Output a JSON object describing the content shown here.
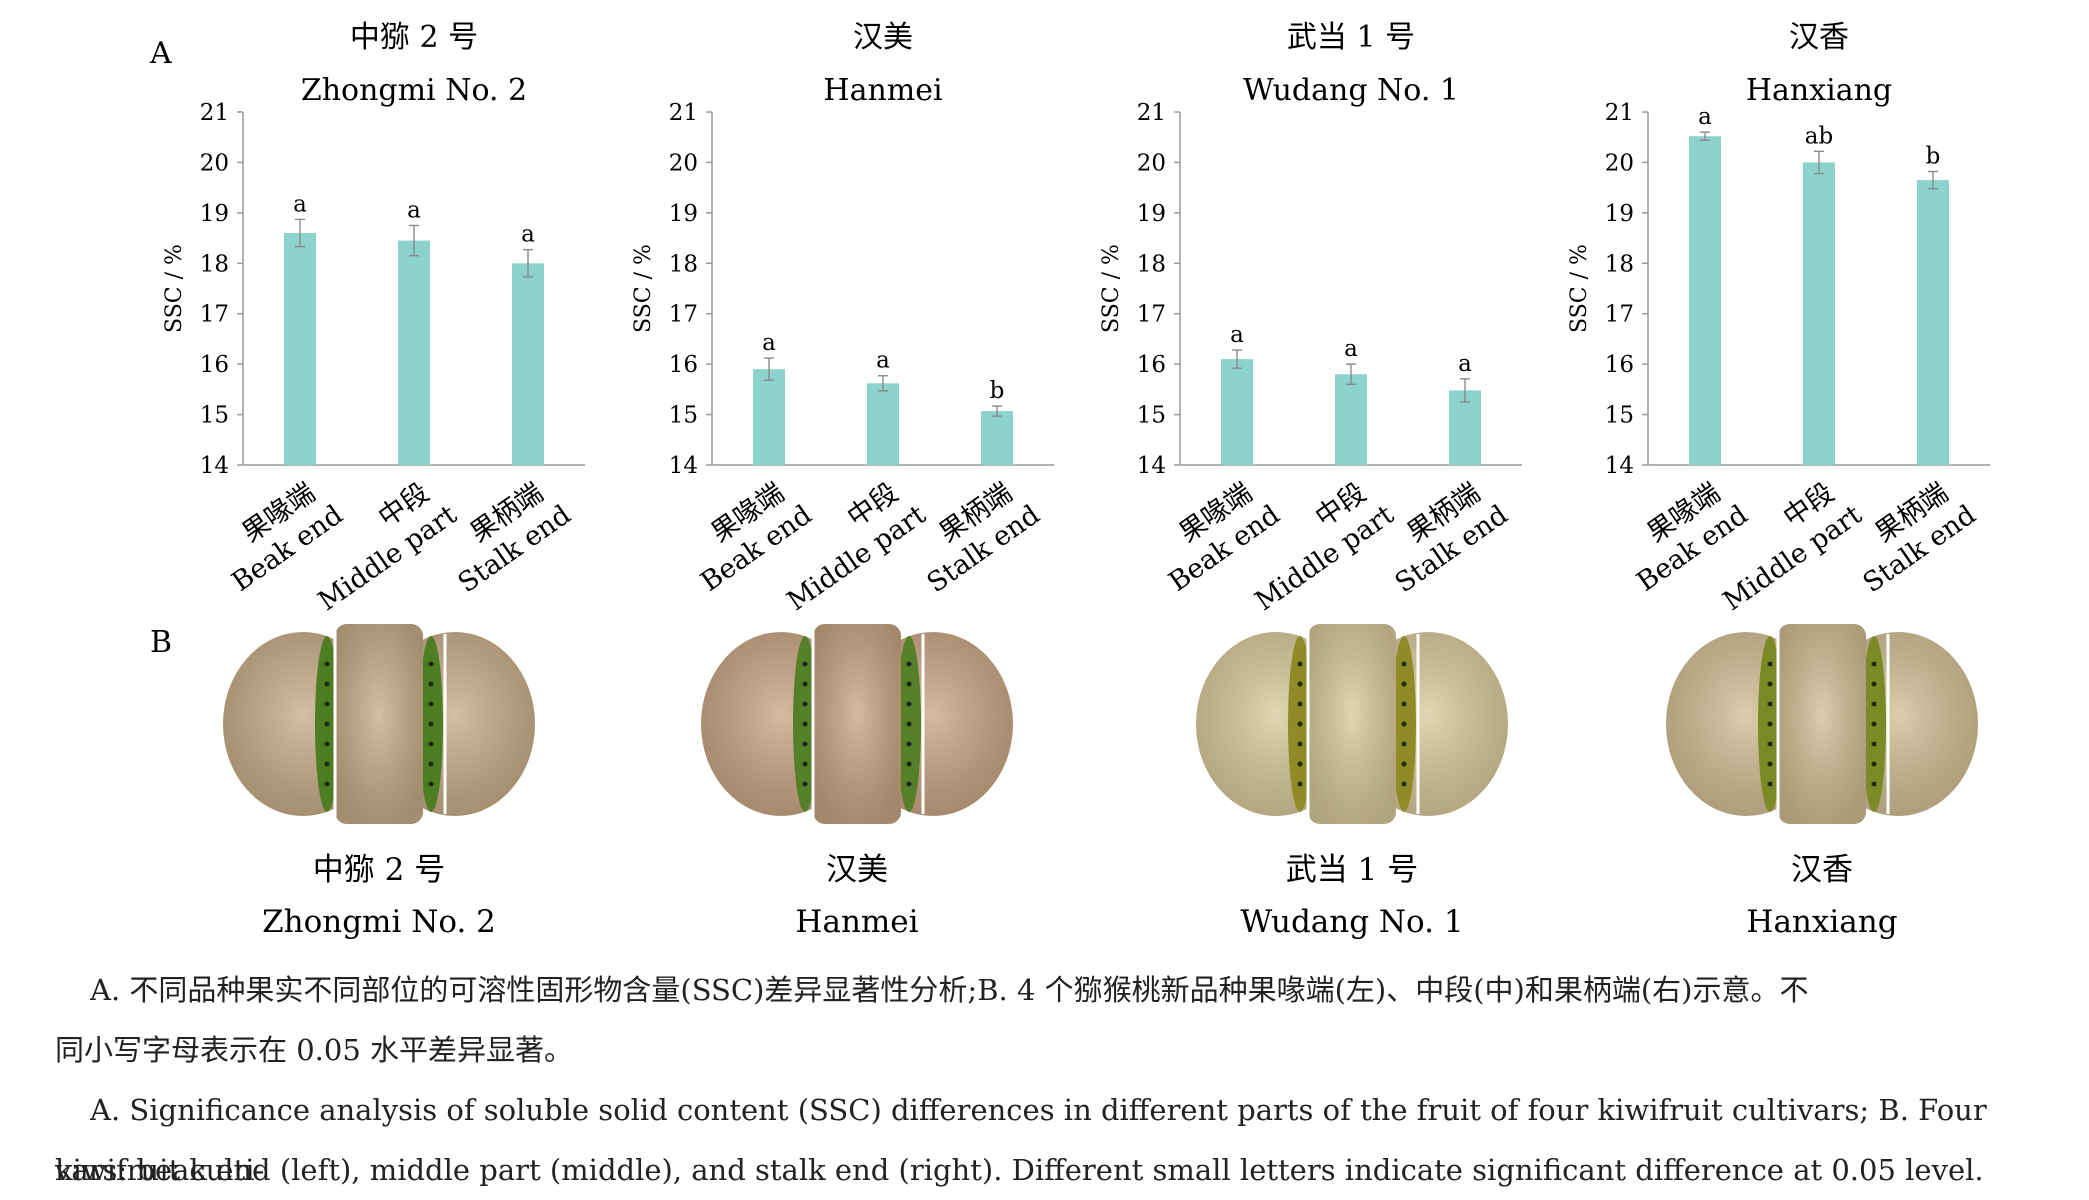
{
  "panel_labels": {
    "a": "A",
    "b": "B"
  },
  "chart_data": [
    {
      "type": "bar",
      "title_cn": "中猕 2 号",
      "title_en": "Zhongmi No. 2",
      "ylabel": "SSC / %",
      "ylim": [
        14,
        21
      ],
      "yticks": [
        "14",
        "15",
        "16",
        "17",
        "18",
        "19",
        "20",
        "21"
      ],
      "categories": [
        {
          "cn": "果喙端",
          "en": "Beak end"
        },
        {
          "cn": "中段",
          "en": "Middle part"
        },
        {
          "cn": "果柄端",
          "en": "Stalk end"
        }
      ],
      "values": [
        18.6,
        18.45,
        18.0
      ],
      "errors": [
        0.27,
        0.3,
        0.27
      ],
      "letters": [
        "a",
        "a",
        "a"
      ],
      "bar_color": "#8dd3cd"
    },
    {
      "type": "bar",
      "title_cn": "汉美",
      "title_en": "Hanmei",
      "ylabel": "SSC / %",
      "ylim": [
        14,
        21
      ],
      "yticks": [
        "14",
        "15",
        "16",
        "17",
        "18",
        "19",
        "20",
        "21"
      ],
      "categories": [
        {
          "cn": "果喙端",
          "en": "Beak end"
        },
        {
          "cn": "中段",
          "en": "Middle part"
        },
        {
          "cn": "果柄端",
          "en": "Stalk end"
        }
      ],
      "values": [
        15.9,
        15.62,
        15.07
      ],
      "errors": [
        0.22,
        0.15,
        0.1
      ],
      "letters": [
        "a",
        "a",
        "b"
      ],
      "bar_color": "#8dd3cd"
    },
    {
      "type": "bar",
      "title_cn": "武当 1 号",
      "title_en": "Wudang No. 1",
      "ylabel": "SSC / %",
      "ylim": [
        14,
        21
      ],
      "yticks": [
        "14",
        "15",
        "16",
        "17",
        "18",
        "19",
        "20",
        "21"
      ],
      "categories": [
        {
          "cn": "果喙端",
          "en": "Beak end"
        },
        {
          "cn": "中段",
          "en": "Middle part"
        },
        {
          "cn": "果柄端",
          "en": "Stalk end"
        }
      ],
      "values": [
        16.1,
        15.8,
        15.48
      ],
      "errors": [
        0.18,
        0.2,
        0.23
      ],
      "letters": [
        "a",
        "a",
        "a"
      ],
      "bar_color": "#8dd3cd"
    },
    {
      "type": "bar",
      "title_cn": "汉香",
      "title_en": "Hanxiang",
      "ylabel": "SSC / %",
      "ylim": [
        14,
        21
      ],
      "yticks": [
        "14",
        "15",
        "16",
        "17",
        "18",
        "19",
        "20",
        "21"
      ],
      "categories": [
        {
          "cn": "果喙端",
          "en": "Beak end"
        },
        {
          "cn": "中段",
          "en": "Middle part"
        },
        {
          "cn": "果柄端",
          "en": "Stalk end"
        }
      ],
      "values": [
        20.52,
        20.0,
        19.65
      ],
      "errors": [
        0.08,
        0.22,
        0.17
      ],
      "letters": [
        "a",
        "ab",
        "b"
      ],
      "bar_color": "#8dd3cd"
    }
  ],
  "photos": [
    {
      "cn": "中猕 2 号",
      "en": "Zhongmi No. 2",
      "skin": "#c8ab86",
      "flesh": "#4f7d24"
    },
    {
      "cn": "汉美",
      "en": "Hanmei",
      "skin": "#c9a582",
      "flesh": "#557f28"
    },
    {
      "cn": "武当 1 号",
      "en": "Wudang No. 1",
      "skin": "#d8c99a",
      "flesh": "#8f8c28"
    },
    {
      "cn": "汉香",
      "en": "Hanxiang",
      "skin": "#d2bd92",
      "flesh": "#7a8a26"
    }
  ],
  "caption": {
    "cn_line1": "A. 不同品种果实不同部位的可溶性固形物含量(SSC)差异显著性分析;B. 4 个猕猴桃新品种果喙端(左)、中段(中)和果柄端(右)示意。不",
    "cn_line2": "同小写字母表示在 0.05 水平差异显著。",
    "en_line1": "A. Significance analysis of soluble solid content (SSC) differences in different parts of the fruit of four kiwifruit cultivars; B. Four kiwifruit culti-",
    "en_line2": "vars: beak end (left), middle part (middle), and stalk end (right). Different small letters indicate significant difference at 0.05 level."
  }
}
